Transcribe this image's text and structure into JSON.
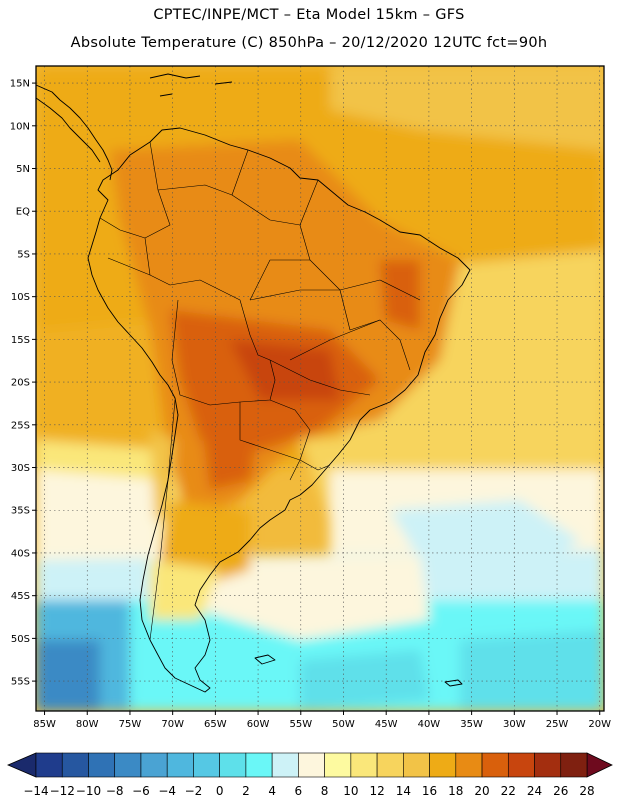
{
  "header": {
    "line1": "CPTEC/INPE/MCT –  Eta Model 15km – GFS",
    "line2": "Absolute Temperature (C) 850hPa – 20/12/2020 12UTC fct=90h"
  },
  "map": {
    "lat_labels": [
      "15N",
      "10N",
      "5N",
      "EQ",
      "5S",
      "10S",
      "15S",
      "20S",
      "25S",
      "30S",
      "35S",
      "40S",
      "45S",
      "50S",
      "55S"
    ],
    "lat_values": [
      15,
      10,
      5,
      0,
      -5,
      -10,
      -15,
      -20,
      -25,
      -30,
      -35,
      -40,
      -45,
      -50,
      -55
    ],
    "lon_labels": [
      "85W",
      "80W",
      "75W",
      "70W",
      "65W",
      "60W",
      "55W",
      "50W",
      "45W",
      "40W",
      "35W",
      "30W",
      "25W",
      "20W"
    ],
    "lon_values": [
      -85,
      -80,
      -75,
      -70,
      -65,
      -60,
      -55,
      -50,
      -45,
      -40,
      -35,
      -30,
      -25,
      -20
    ],
    "lon_range": [
      -86,
      -19.5
    ],
    "lat_range": [
      -58.5,
      17
    ],
    "variable": "Absolute Temperature (C) 850hPa"
  },
  "colorbar": {
    "labels": [
      "-14",
      "-12",
      "-10",
      "-8",
      "-6",
      "-4",
      "-2",
      "0",
      "2",
      "4",
      "6",
      "8",
      "10",
      "12",
      "14",
      "16",
      "18",
      "20",
      "22",
      "24",
      "26",
      "28"
    ],
    "colors": [
      "#1f3c8c",
      "#2657a0",
      "#2f72b5",
      "#3b8ac5",
      "#4aa3d3",
      "#4fb7de",
      "#55c8e4",
      "#5ee0ea",
      "#6af7f7",
      "#cdf2f7",
      "#fdf6dd",
      "#fdfaa0",
      "#fae77a",
      "#f7d45d",
      "#f2c347",
      "#eeab16",
      "#e88b14",
      "#d9600c",
      "#c8450e",
      "#a32e0f",
      "#7f2010"
    ],
    "under_color": "#1a2a6c",
    "over_color": "#6e0a1e"
  }
}
